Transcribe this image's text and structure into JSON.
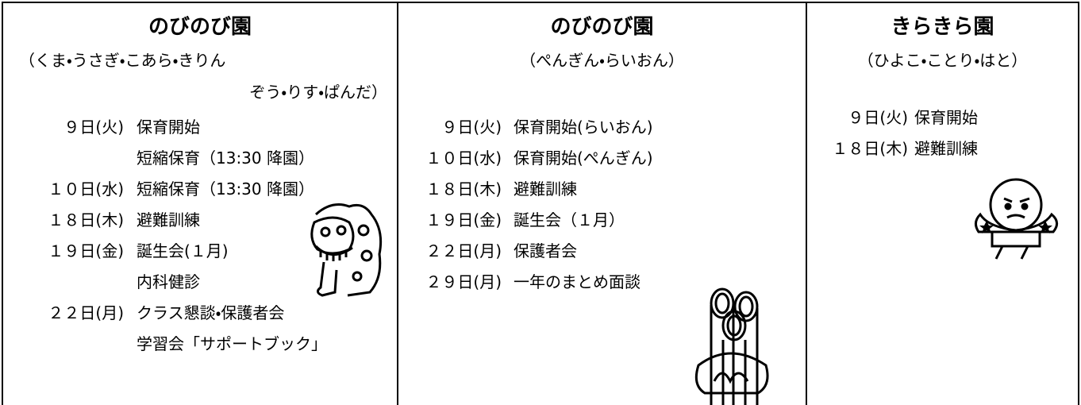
{
  "columns": [
    {
      "title": "のびのび園",
      "subtitle": [
        "（くま・うさぎ・こあら・きりん",
        "ぞう・りす・ぱんだ）"
      ],
      "events": [
        {
          "date": "９日(火)",
          "lines": [
            "保育開始",
            "短縮保育（13:30 降園）"
          ]
        },
        {
          "date": "１０日(水)",
          "lines": [
            "短縮保育（13:30 降園）"
          ]
        },
        {
          "date": "１８日(木)",
          "lines": [
            "避難訓練"
          ]
        },
        {
          "date": "１９日(金)",
          "lines": [
            "誕生会(１月)",
            "内科健診"
          ]
        },
        {
          "date": "２２日(月)",
          "lines": [
            "クラス懇談・保護者会",
            "学習会「サポートブック」"
          ]
        }
      ]
    },
    {
      "title": "のびのび園",
      "subtitle": [
        "（ぺんぎん・らいおん）"
      ],
      "events": [
        {
          "date": "９日(火)",
          "lines": [
            "保育開始(らいおん)"
          ]
        },
        {
          "date": "１０日(水)",
          "lines": [
            "保育開始(ぺんぎん)"
          ]
        },
        {
          "date": "１８日(木)",
          "lines": [
            "避難訓練"
          ]
        },
        {
          "date": "１９日(金)",
          "lines": [
            "誕生会（１月）"
          ]
        },
        {
          "date": "２２日(月)",
          "lines": [
            "保護者会"
          ]
        },
        {
          "date": "２９日(月)",
          "lines": [
            "一年のまとめ面談"
          ]
        }
      ]
    },
    {
      "title": "きらきら園",
      "subtitle": [
        "（ひよこ・ことり・はと）"
      ],
      "events": [
        {
          "date": "９日(火)",
          "lines": [
            "保育開始"
          ]
        },
        {
          "date": "１８日(木)",
          "lines": [
            "避難訓練"
          ]
        }
      ]
    }
  ]
}
